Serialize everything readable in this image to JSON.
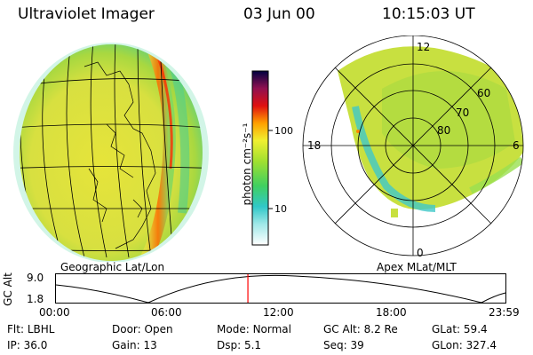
{
  "header": {
    "title": "Ultraviolet Imager",
    "date": "03 Jun 00",
    "time": "10:15:03 UT"
  },
  "panels": {
    "left_label": "Geographic Lat/Lon",
    "right_label": "Apex MLat/MLT"
  },
  "colorbar": {
    "unit_label": "photon cm⁻²s⁻¹",
    "ticks": [
      "100",
      "10"
    ]
  },
  "polar": {
    "mlt_labels": {
      "top": "12",
      "left": "18",
      "right": "6",
      "bottom": "0"
    },
    "lat_labels": [
      "60",
      "70",
      "80"
    ]
  },
  "altitude_plot": {
    "ylabel": "GC Alt",
    "y_ticks": [
      "9.0",
      "1.8"
    ],
    "x_ticks": [
      "00:00",
      "06:00",
      "12:00",
      "18:00",
      "23:59"
    ],
    "current_time_fraction": 0.427
  },
  "info": {
    "row1": [
      {
        "label": "Flt:",
        "value": "LBHL"
      },
      {
        "label": "Door:",
        "value": "Open"
      },
      {
        "label": "Mode:",
        "value": "Normal"
      },
      {
        "label": "GC Alt:",
        "value": "8.2 Re"
      },
      {
        "label": "GLat:",
        "value": "59.4"
      }
    ],
    "row2": [
      {
        "label": "IP:",
        "value": "36.0"
      },
      {
        "label": "Gain:",
        "value": "13"
      },
      {
        "label": "Dsp:",
        "value": "5.1"
      },
      {
        "label": "Seq:",
        "value": "39"
      },
      {
        "label": "GLon:",
        "value": "327.4"
      }
    ]
  },
  "colors": {
    "accent_line": "#ff0000",
    "dayglow": "#e6e63c",
    "aurora": "#ff8800"
  }
}
